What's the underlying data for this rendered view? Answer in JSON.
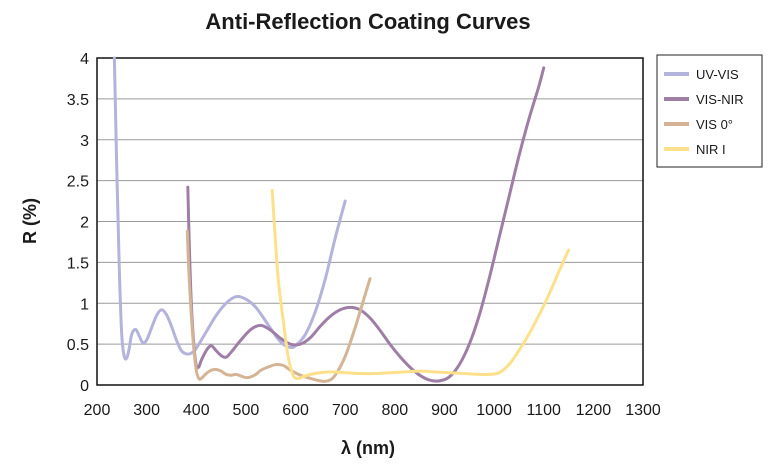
{
  "chart_data": {
    "type": "line",
    "title": "Anti-Reflection Coating Curves",
    "xlabel": "λ (nm)",
    "ylabel": "R (%)",
    "xlim": [
      200,
      1300
    ],
    "ylim": [
      0,
      4
    ],
    "x_ticks": [
      "200",
      "300",
      "400",
      "500",
      "600",
      "700",
      "800",
      "900",
      "1000",
      "1100",
      "1200",
      "1300"
    ],
    "y_ticks": [
      "0",
      "0.5",
      "1",
      "1.5",
      "2",
      "2.5",
      "3",
      "3.5",
      "4"
    ],
    "grid": "horizontal",
    "legend_position": "right",
    "series": [
      {
        "name": "UV-VIS",
        "color": "#b3b3dc",
        "points": [
          [
            235,
            4.0
          ],
          [
            240,
            2.6
          ],
          [
            245,
            1.4
          ],
          [
            250,
            0.6
          ],
          [
            255,
            0.35
          ],
          [
            260,
            0.33
          ],
          [
            265,
            0.45
          ],
          [
            270,
            0.62
          ],
          [
            278,
            0.68
          ],
          [
            285,
            0.6
          ],
          [
            292,
            0.52
          ],
          [
            300,
            0.55
          ],
          [
            310,
            0.7
          ],
          [
            320,
            0.85
          ],
          [
            330,
            0.92
          ],
          [
            340,
            0.86
          ],
          [
            350,
            0.72
          ],
          [
            360,
            0.55
          ],
          [
            370,
            0.42
          ],
          [
            380,
            0.38
          ],
          [
            390,
            0.39
          ],
          [
            400,
            0.45
          ],
          [
            420,
            0.65
          ],
          [
            440,
            0.85
          ],
          [
            460,
            1.0
          ],
          [
            480,
            1.08
          ],
          [
            500,
            1.05
          ],
          [
            520,
            0.95
          ],
          [
            540,
            0.78
          ],
          [
            560,
            0.6
          ],
          [
            575,
            0.5
          ],
          [
            590,
            0.46
          ],
          [
            600,
            0.48
          ],
          [
            620,
            0.62
          ],
          [
            640,
            0.9
          ],
          [
            660,
            1.3
          ],
          [
            680,
            1.8
          ],
          [
            700,
            2.25
          ]
        ]
      },
      {
        "name": "VIS-NIR",
        "color": "#9f7ea6",
        "points": [
          [
            383,
            2.42
          ],
          [
            386,
            1.7
          ],
          [
            390,
            1.0
          ],
          [
            395,
            0.5
          ],
          [
            400,
            0.24
          ],
          [
            405,
            0.22
          ],
          [
            410,
            0.3
          ],
          [
            420,
            0.42
          ],
          [
            430,
            0.48
          ],
          [
            440,
            0.42
          ],
          [
            450,
            0.36
          ],
          [
            460,
            0.34
          ],
          [
            470,
            0.4
          ],
          [
            490,
            0.55
          ],
          [
            510,
            0.68
          ],
          [
            530,
            0.73
          ],
          [
            550,
            0.67
          ],
          [
            570,
            0.57
          ],
          [
            590,
            0.5
          ],
          [
            610,
            0.5
          ],
          [
            630,
            0.58
          ],
          [
            650,
            0.72
          ],
          [
            670,
            0.84
          ],
          [
            690,
            0.92
          ],
          [
            710,
            0.95
          ],
          [
            730,
            0.92
          ],
          [
            750,
            0.82
          ],
          [
            770,
            0.67
          ],
          [
            790,
            0.5
          ],
          [
            810,
            0.35
          ],
          [
            830,
            0.22
          ],
          [
            850,
            0.12
          ],
          [
            870,
            0.06
          ],
          [
            890,
            0.05
          ],
          [
            910,
            0.1
          ],
          [
            930,
            0.25
          ],
          [
            950,
            0.5
          ],
          [
            970,
            0.85
          ],
          [
            990,
            1.3
          ],
          [
            1010,
            1.8
          ],
          [
            1030,
            2.3
          ],
          [
            1050,
            2.8
          ],
          [
            1070,
            3.25
          ],
          [
            1090,
            3.65
          ],
          [
            1100,
            3.88
          ]
        ]
      },
      {
        "name": "VIS 0°",
        "color": "#d4b495",
        "points": [
          [
            382,
            1.88
          ],
          [
            385,
            1.4
          ],
          [
            390,
            0.85
          ],
          [
            395,
            0.45
          ],
          [
            400,
            0.18
          ],
          [
            405,
            0.08
          ],
          [
            410,
            0.08
          ],
          [
            420,
            0.14
          ],
          [
            430,
            0.18
          ],
          [
            440,
            0.19
          ],
          [
            450,
            0.17
          ],
          [
            460,
            0.13
          ],
          [
            470,
            0.12
          ],
          [
            480,
            0.13
          ],
          [
            490,
            0.11
          ],
          [
            500,
            0.09
          ],
          [
            510,
            0.1
          ],
          [
            520,
            0.13
          ],
          [
            530,
            0.18
          ],
          [
            545,
            0.22
          ],
          [
            560,
            0.25
          ],
          [
            575,
            0.24
          ],
          [
            590,
            0.18
          ],
          [
            610,
            0.12
          ],
          [
            630,
            0.08
          ],
          [
            650,
            0.05
          ],
          [
            665,
            0.05
          ],
          [
            680,
            0.12
          ],
          [
            700,
            0.35
          ],
          [
            720,
            0.7
          ],
          [
            740,
            1.1
          ],
          [
            750,
            1.3
          ]
        ]
      },
      {
        "name": "NIR I",
        "color": "#ffe08a",
        "points": [
          [
            553,
            2.38
          ],
          [
            558,
            1.9
          ],
          [
            565,
            1.3
          ],
          [
            575,
            0.8
          ],
          [
            585,
            0.35
          ],
          [
            595,
            0.12
          ],
          [
            605,
            0.08
          ],
          [
            615,
            0.1
          ],
          [
            630,
            0.13
          ],
          [
            650,
            0.15
          ],
          [
            670,
            0.16
          ],
          [
            700,
            0.15
          ],
          [
            730,
            0.14
          ],
          [
            760,
            0.14
          ],
          [
            790,
            0.15
          ],
          [
            820,
            0.16
          ],
          [
            850,
            0.17
          ],
          [
            880,
            0.16
          ],
          [
            910,
            0.15
          ],
          [
            940,
            0.14
          ],
          [
            970,
            0.13
          ],
          [
            990,
            0.13
          ],
          [
            1010,
            0.15
          ],
          [
            1030,
            0.25
          ],
          [
            1050,
            0.42
          ],
          [
            1070,
            0.62
          ],
          [
            1090,
            0.85
          ],
          [
            1110,
            1.1
          ],
          [
            1130,
            1.38
          ],
          [
            1150,
            1.65
          ]
        ]
      }
    ]
  }
}
